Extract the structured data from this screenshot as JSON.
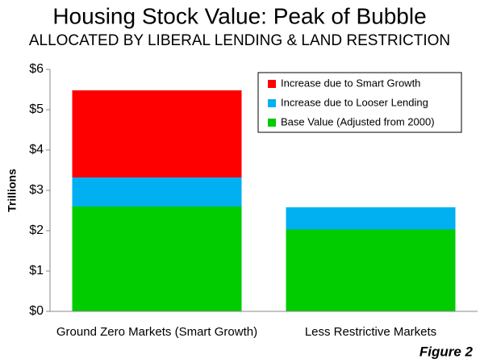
{
  "chart_data": {
    "type": "stacked_bar",
    "title": "Housing Stock Value: Peak of Bubble",
    "subtitle": "ALLOCATED BY LIBERAL LENDING & LAND RESTRICTION",
    "y_label": "Trillions",
    "annotation": "Figure 2",
    "categories": [
      "Ground Zero Markets (Smart Growth)",
      "Less Restrictive Markets"
    ],
    "series": [
      {
        "name": "Base Value (Adjusted from 2000)",
        "color": "#00cc00",
        "values": [
          2.6,
          2.03
        ]
      },
      {
        "name": "Increase due to Looser Lending",
        "color": "#00b0f0",
        "values": [
          0.72,
          0.55
        ]
      },
      {
        "name": "Increase due to Smart Growth",
        "color": "#ff0000",
        "values": [
          2.16,
          null
        ]
      }
    ],
    "ylim": [
      0,
      6
    ],
    "yticks": [
      {
        "value": 0,
        "label": "$0"
      },
      {
        "value": 1,
        "label": "$1"
      },
      {
        "value": 2,
        "label": "$2"
      },
      {
        "value": 3,
        "label": "$3"
      },
      {
        "value": 4,
        "label": "$4"
      },
      {
        "value": 5,
        "label": "$5"
      },
      {
        "value": 6,
        "label": "$6"
      }
    ],
    "legend": "upper right"
  }
}
